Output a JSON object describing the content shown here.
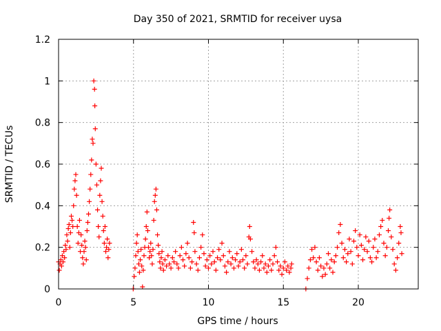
{
  "chart_data": {
    "type": "scatter",
    "title": "Day 350 of 2021, SRMTID for receiver uysa",
    "xlabel": "GPS time / hours",
    "ylabel": "SRMTID / TECUs",
    "xlim": [
      0,
      24
    ],
    "ylim": [
      0,
      1.2
    ],
    "x_ticks": [
      0,
      5,
      10,
      15,
      20
    ],
    "y_ticks": [
      0,
      0.2,
      0.4,
      0.6,
      0.8,
      1,
      1.2
    ],
    "x_tick_labels": [
      "0",
      "5",
      "10",
      "15",
      "20"
    ],
    "y_tick_labels": [
      "0",
      "0.2",
      "0.4",
      "0.6",
      "0.8",
      "1",
      "1.2"
    ],
    "grid": true,
    "marker": "+",
    "series": [
      {
        "name": "SRMTID",
        "color": "#ff0000",
        "points": [
          [
            0.0,
            0.13
          ],
          [
            0.05,
            0.09
          ],
          [
            0.1,
            0.12
          ],
          [
            0.15,
            0.14
          ],
          [
            0.2,
            0.11
          ],
          [
            0.25,
            0.16
          ],
          [
            0.3,
            0.13
          ],
          [
            0.35,
            0.18
          ],
          [
            0.4,
            0.15
          ],
          [
            0.45,
            0.21
          ],
          [
            0.5,
            0.19
          ],
          [
            0.55,
            0.26
          ],
          [
            0.6,
            0.23
          ],
          [
            0.65,
            0.29
          ],
          [
            0.7,
            0.31
          ],
          [
            0.75,
            0.2
          ],
          [
            0.8,
            0.27
          ],
          [
            0.85,
            0.35
          ],
          [
            0.9,
            0.33
          ],
          [
            0.95,
            0.3
          ],
          [
            1.0,
            0.4
          ],
          [
            1.05,
            0.48
          ],
          [
            1.1,
            0.52
          ],
          [
            1.15,
            0.55
          ],
          [
            1.2,
            0.45
          ],
          [
            1.25,
            0.3
          ],
          [
            1.3,
            0.22
          ],
          [
            1.35,
            0.27
          ],
          [
            1.4,
            0.33
          ],
          [
            1.45,
            0.18
          ],
          [
            1.5,
            0.26
          ],
          [
            1.55,
            0.21
          ],
          [
            1.6,
            0.15
          ],
          [
            1.65,
            0.12
          ],
          [
            1.7,
            0.18
          ],
          [
            1.75,
            0.23
          ],
          [
            1.8,
            0.2
          ],
          [
            1.85,
            0.14
          ],
          [
            1.9,
            0.28
          ],
          [
            1.95,
            0.32
          ],
          [
            2.0,
            0.36
          ],
          [
            2.05,
            0.42
          ],
          [
            2.1,
            0.48
          ],
          [
            2.15,
            0.55
          ],
          [
            2.2,
            0.62
          ],
          [
            2.25,
            0.72
          ],
          [
            2.3,
            0.7
          ],
          [
            2.35,
            1.0
          ],
          [
            2.4,
            0.96
          ],
          [
            2.42,
            0.88
          ],
          [
            2.45,
            0.77
          ],
          [
            2.5,
            0.6
          ],
          [
            2.55,
            0.5
          ],
          [
            2.6,
            0.38
          ],
          [
            2.65,
            0.3
          ],
          [
            2.7,
            0.25
          ],
          [
            2.75,
            0.45
          ],
          [
            2.8,
            0.52
          ],
          [
            2.85,
            0.58
          ],
          [
            2.9,
            0.42
          ],
          [
            2.95,
            0.35
          ],
          [
            3.0,
            0.28
          ],
          [
            3.05,
            0.22
          ],
          [
            3.1,
            0.3
          ],
          [
            3.15,
            0.18
          ],
          [
            3.2,
            0.2
          ],
          [
            3.25,
            0.24
          ],
          [
            3.3,
            0.15
          ],
          [
            3.35,
            0.19
          ],
          [
            3.4,
            0.22
          ],
          [
            4.98,
            0.0
          ],
          [
            5.05,
            0.06
          ],
          [
            5.1,
            0.1
          ],
          [
            5.15,
            0.16
          ],
          [
            5.2,
            0.22
          ],
          [
            5.25,
            0.26
          ],
          [
            5.3,
            0.18
          ],
          [
            5.35,
            0.12
          ],
          [
            5.4,
            0.08
          ],
          [
            5.45,
            0.14
          ],
          [
            5.5,
            0.19
          ],
          [
            5.55,
            0.11
          ],
          [
            5.6,
            0.01
          ],
          [
            5.65,
            0.09
          ],
          [
            5.7,
            0.16
          ],
          [
            5.75,
            0.2
          ],
          [
            5.8,
            0.24
          ],
          [
            5.85,
            0.3
          ],
          [
            5.9,
            0.37
          ],
          [
            5.95,
            0.28
          ],
          [
            6.0,
            0.2
          ],
          [
            6.05,
            0.15
          ],
          [
            6.1,
            0.18
          ],
          [
            6.15,
            0.22
          ],
          [
            6.2,
            0.16
          ],
          [
            6.25,
            0.12
          ],
          [
            6.3,
            0.19
          ],
          [
            6.35,
            0.33
          ],
          [
            6.4,
            0.42
          ],
          [
            6.45,
            0.45
          ],
          [
            6.5,
            0.48
          ],
          [
            6.55,
            0.38
          ],
          [
            6.6,
            0.26
          ],
          [
            6.65,
            0.21
          ],
          [
            6.7,
            0.17
          ],
          [
            6.75,
            0.13
          ],
          [
            6.8,
            0.1
          ],
          [
            6.85,
            0.15
          ],
          [
            6.9,
            0.18
          ],
          [
            6.95,
            0.12
          ],
          [
            7.0,
            0.09
          ],
          [
            7.1,
            0.14
          ],
          [
            7.2,
            0.11
          ],
          [
            7.3,
            0.16
          ],
          [
            7.4,
            0.12
          ],
          [
            7.5,
            0.1
          ],
          [
            7.6,
            0.15
          ],
          [
            7.7,
            0.13
          ],
          [
            7.8,
            0.18
          ],
          [
            7.9,
            0.12
          ],
          [
            8.0,
            0.1
          ],
          [
            8.1,
            0.16
          ],
          [
            8.2,
            0.2
          ],
          [
            8.3,
            0.14
          ],
          [
            8.4,
            0.11
          ],
          [
            8.5,
            0.17
          ],
          [
            8.6,
            0.22
          ],
          [
            8.7,
            0.15
          ],
          [
            8.8,
            0.1
          ],
          [
            8.9,
            0.13
          ],
          [
            9.0,
            0.32
          ],
          [
            9.05,
            0.27
          ],
          [
            9.1,
            0.18
          ],
          [
            9.2,
            0.12
          ],
          [
            9.3,
            0.09
          ],
          [
            9.4,
            0.15
          ],
          [
            9.5,
            0.2
          ],
          [
            9.6,
            0.26
          ],
          [
            9.7,
            0.17
          ],
          [
            9.8,
            0.11
          ],
          [
            9.9,
            0.14
          ],
          [
            10.0,
            0.1
          ],
          [
            10.1,
            0.16
          ],
          [
            10.2,
            0.12
          ],
          [
            10.3,
            0.18
          ],
          [
            10.4,
            0.13
          ],
          [
            10.5,
            0.09
          ],
          [
            10.6,
            0.15
          ],
          [
            10.7,
            0.19
          ],
          [
            10.8,
            0.14
          ],
          [
            10.9,
            0.22
          ],
          [
            11.0,
            0.16
          ],
          [
            11.1,
            0.11
          ],
          [
            11.2,
            0.08
          ],
          [
            11.3,
            0.13
          ],
          [
            11.4,
            0.18
          ],
          [
            11.5,
            0.12
          ],
          [
            11.6,
            0.15
          ],
          [
            11.7,
            0.1
          ],
          [
            11.8,
            0.14
          ],
          [
            11.9,
            0.17
          ],
          [
            12.0,
            0.11
          ],
          [
            12.1,
            0.13
          ],
          [
            12.2,
            0.19
          ],
          [
            12.3,
            0.14
          ],
          [
            12.4,
            0.1
          ],
          [
            12.5,
            0.16
          ],
          [
            12.6,
            0.12
          ],
          [
            12.7,
            0.25
          ],
          [
            12.75,
            0.3
          ],
          [
            12.8,
            0.24
          ],
          [
            12.9,
            0.18
          ],
          [
            13.0,
            0.13
          ],
          [
            13.1,
            0.1
          ],
          [
            13.2,
            0.14
          ],
          [
            13.3,
            0.12
          ],
          [
            13.4,
            0.09
          ],
          [
            13.5,
            0.13
          ],
          [
            13.6,
            0.16
          ],
          [
            13.7,
            0.1
          ],
          [
            13.8,
            0.12
          ],
          [
            13.9,
            0.08
          ],
          [
            14.0,
            0.11
          ],
          [
            14.1,
            0.14
          ],
          [
            14.2,
            0.09
          ],
          [
            14.3,
            0.12
          ],
          [
            14.4,
            0.16
          ],
          [
            14.5,
            0.2
          ],
          [
            14.6,
            0.13
          ],
          [
            14.7,
            0.09
          ],
          [
            14.8,
            0.11
          ],
          [
            14.9,
            0.07
          ],
          [
            15.0,
            0.1
          ],
          [
            15.1,
            0.13
          ],
          [
            15.2,
            0.09
          ],
          [
            15.3,
            0.11
          ],
          [
            15.4,
            0.08
          ],
          [
            15.5,
            0.1
          ],
          [
            15.55,
            0.12
          ],
          [
            16.5,
            0.0
          ],
          [
            16.6,
            0.05
          ],
          [
            16.7,
            0.1
          ],
          [
            16.8,
            0.14
          ],
          [
            16.9,
            0.19
          ],
          [
            17.0,
            0.15
          ],
          [
            17.1,
            0.2
          ],
          [
            17.2,
            0.13
          ],
          [
            17.3,
            0.09
          ],
          [
            17.4,
            0.15
          ],
          [
            17.5,
            0.11
          ],
          [
            17.6,
            0.06
          ],
          [
            17.7,
            0.1
          ],
          [
            17.8,
            0.07
          ],
          [
            17.9,
            0.12
          ],
          [
            18.0,
            0.17
          ],
          [
            18.1,
            0.1
          ],
          [
            18.2,
            0.14
          ],
          [
            18.3,
            0.08
          ],
          [
            18.4,
            0.13
          ],
          [
            18.5,
            0.16
          ],
          [
            18.6,
            0.2
          ],
          [
            18.7,
            0.27
          ],
          [
            18.8,
            0.31
          ],
          [
            18.9,
            0.22
          ],
          [
            19.0,
            0.15
          ],
          [
            19.1,
            0.19
          ],
          [
            19.2,
            0.13
          ],
          [
            19.3,
            0.17
          ],
          [
            19.4,
            0.24
          ],
          [
            19.5,
            0.18
          ],
          [
            19.6,
            0.12
          ],
          [
            19.7,
            0.23
          ],
          [
            19.8,
            0.28
          ],
          [
            19.9,
            0.2
          ],
          [
            20.0,
            0.16
          ],
          [
            20.1,
            0.26
          ],
          [
            20.2,
            0.21
          ],
          [
            20.3,
            0.14
          ],
          [
            20.4,
            0.19
          ],
          [
            20.5,
            0.25
          ],
          [
            20.6,
            0.18
          ],
          [
            20.7,
            0.23
          ],
          [
            20.8,
            0.15
          ],
          [
            20.9,
            0.13
          ],
          [
            21.0,
            0.2
          ],
          [
            21.1,
            0.24
          ],
          [
            21.2,
            0.15
          ],
          [
            21.3,
            0.18
          ],
          [
            21.4,
            0.26
          ],
          [
            21.5,
            0.3
          ],
          [
            21.6,
            0.33
          ],
          [
            21.7,
            0.22
          ],
          [
            21.8,
            0.16
          ],
          [
            21.9,
            0.2
          ],
          [
            22.0,
            0.28
          ],
          [
            22.05,
            0.34
          ],
          [
            22.1,
            0.38
          ],
          [
            22.2,
            0.25
          ],
          [
            22.3,
            0.19
          ],
          [
            22.4,
            0.12
          ],
          [
            22.5,
            0.09
          ],
          [
            22.6,
            0.15
          ],
          [
            22.7,
            0.22
          ],
          [
            22.8,
            0.3
          ],
          [
            22.85,
            0.27
          ],
          [
            22.9,
            0.17
          ]
        ]
      }
    ]
  }
}
